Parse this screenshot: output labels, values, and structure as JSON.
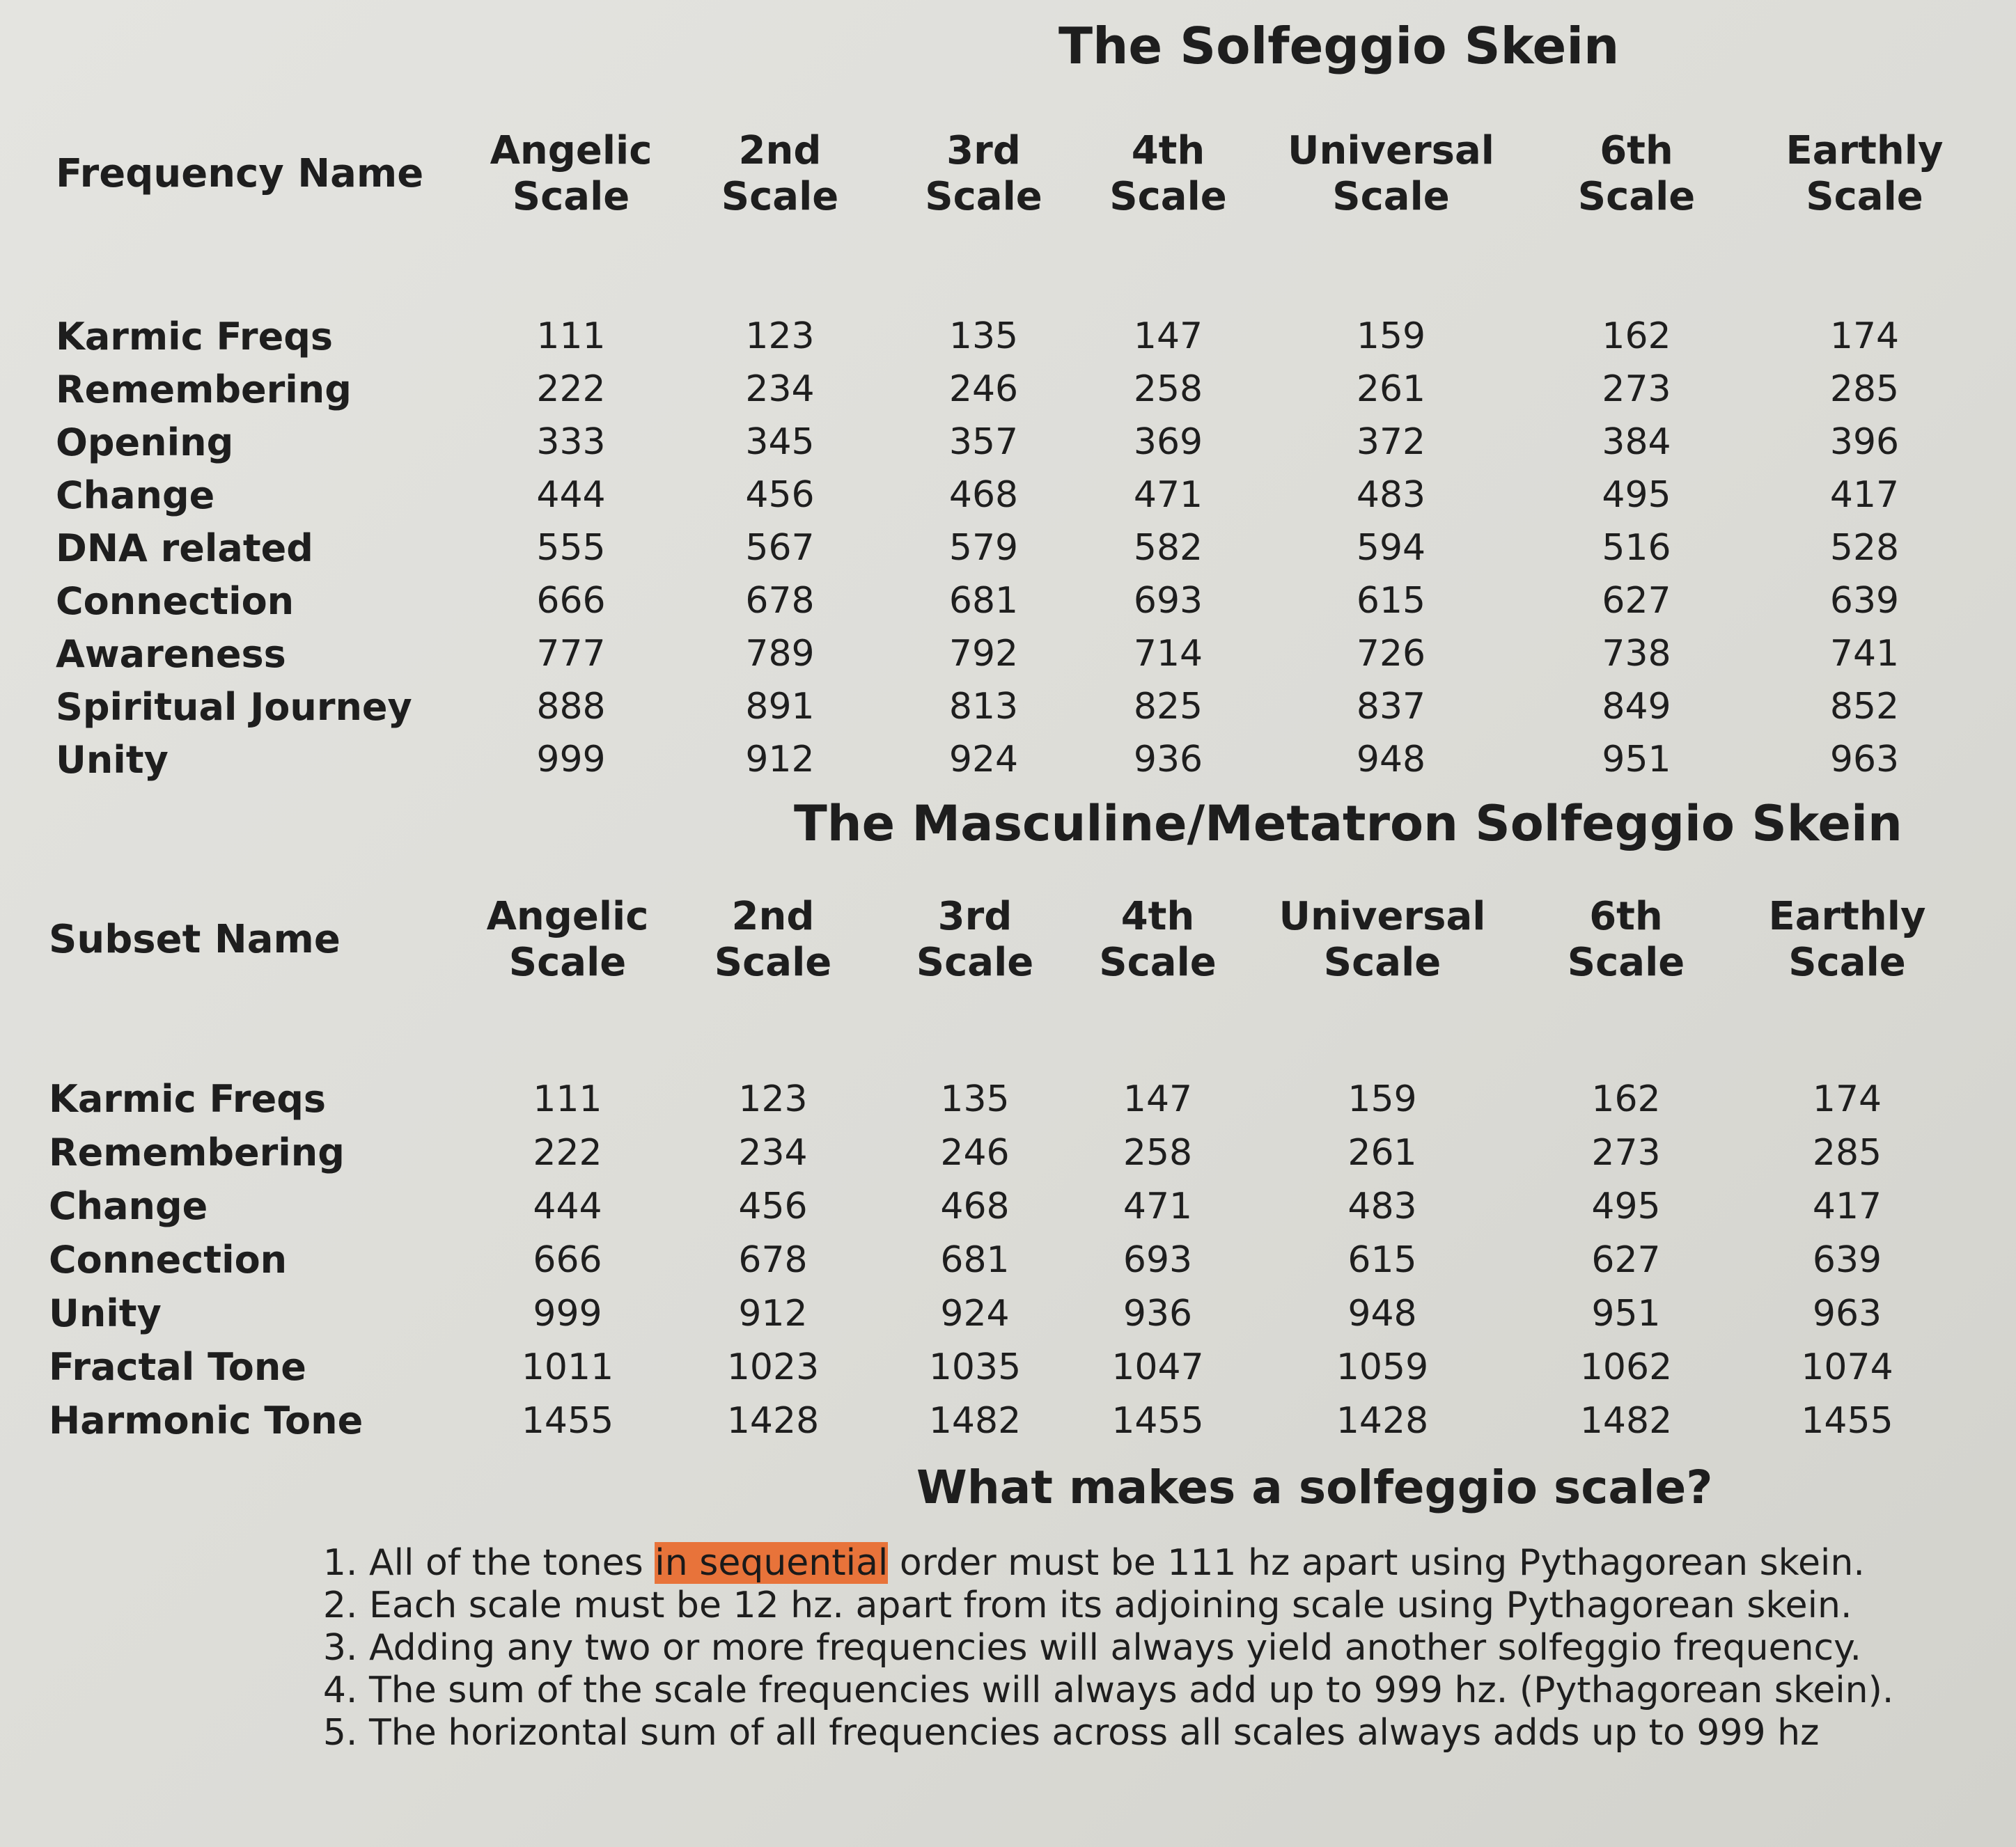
{
  "table1": {
    "title": "The Solfeggio Skein",
    "name_header": "Frequency Name",
    "columns": [
      "Angelic\nScale",
      "2nd\nScale",
      "3rd\nScale",
      "4th\nScale",
      "Universal\nScale",
      "6th\nScale",
      "Earthly\nScale"
    ],
    "rows": [
      {
        "name": "Karmic Freqs",
        "values": [
          "111",
          "123",
          "135",
          "147",
          "159",
          "162",
          "174"
        ]
      },
      {
        "name": "Remembering",
        "values": [
          "222",
          "234",
          "246",
          "258",
          "261",
          "273",
          "285"
        ]
      },
      {
        "name": "Opening",
        "values": [
          "333",
          "345",
          "357",
          "369",
          "372",
          "384",
          "396"
        ]
      },
      {
        "name": "Change",
        "values": [
          "444",
          "456",
          "468",
          "471",
          "483",
          "495",
          "417"
        ]
      },
      {
        "name": "DNA related",
        "values": [
          "555",
          "567",
          "579",
          "582",
          "594",
          "516",
          "528"
        ]
      },
      {
        "name": "Connection",
        "values": [
          "666",
          "678",
          "681",
          "693",
          "615",
          "627",
          "639"
        ]
      },
      {
        "name": "Awareness",
        "values": [
          "777",
          "789",
          "792",
          "714",
          "726",
          "738",
          "741"
        ]
      },
      {
        "name": "Spiritual Journey",
        "values": [
          "888",
          "891",
          "813",
          "825",
          "837",
          "849",
          "852"
        ]
      },
      {
        "name": "Unity",
        "values": [
          "999",
          "912",
          "924",
          "936",
          "948",
          "951",
          "963"
        ]
      }
    ]
  },
  "table2": {
    "title": "The Masculine/Metatron Solfeggio Skein",
    "name_header": "Subset Name",
    "columns": [
      "Angelic\nScale",
      "2nd\nScale",
      "3rd\nScale",
      "4th\nScale",
      "Universal\nScale",
      "6th\nScale",
      "Earthly\nScale"
    ],
    "rows": [
      {
        "name": "Karmic Freqs",
        "values": [
          "111",
          "123",
          "135",
          "147",
          "159",
          "162",
          "174"
        ]
      },
      {
        "name": "Remembering",
        "values": [
          "222",
          "234",
          "246",
          "258",
          "261",
          "273",
          "285"
        ]
      },
      {
        "name": "Change",
        "values": [
          "444",
          "456",
          "468",
          "471",
          "483",
          "495",
          "417"
        ]
      },
      {
        "name": "Connection",
        "values": [
          "666",
          "678",
          "681",
          "693",
          "615",
          "627",
          "639"
        ]
      },
      {
        "name": "Unity",
        "values": [
          "999",
          "912",
          "924",
          "936",
          "948",
          "951",
          "963"
        ]
      },
      {
        "name": "Fractal Tone",
        "values": [
          "1011",
          "1023",
          "1035",
          "1047",
          "1059",
          "1062",
          "1074"
        ]
      },
      {
        "name": "Harmonic Tone",
        "values": [
          "1455",
          "1428",
          "1482",
          "1455",
          "1428",
          "1482",
          "1455"
        ]
      }
    ]
  },
  "rules_section": {
    "title": "What makes a solfeggio scale?",
    "highlight_color": "#e8733a",
    "rule1": {
      "before": "All of the tones ",
      "highlight": "in sequential",
      "after": " order must be 111 hz apart using Pythagorean skein."
    },
    "rule2": "Each scale must be 12 hz. apart from its adjoining scale using Pythagorean skein.",
    "rule3": "Adding any two or more frequencies will always yield another solfeggio frequency.",
    "rule4": "The sum of the scale frequencies will always add up to 999 hz. (Pythagorean skein).",
    "rule5": "The horizontal sum of all frequencies across all scales always adds up to 999 hz"
  }
}
